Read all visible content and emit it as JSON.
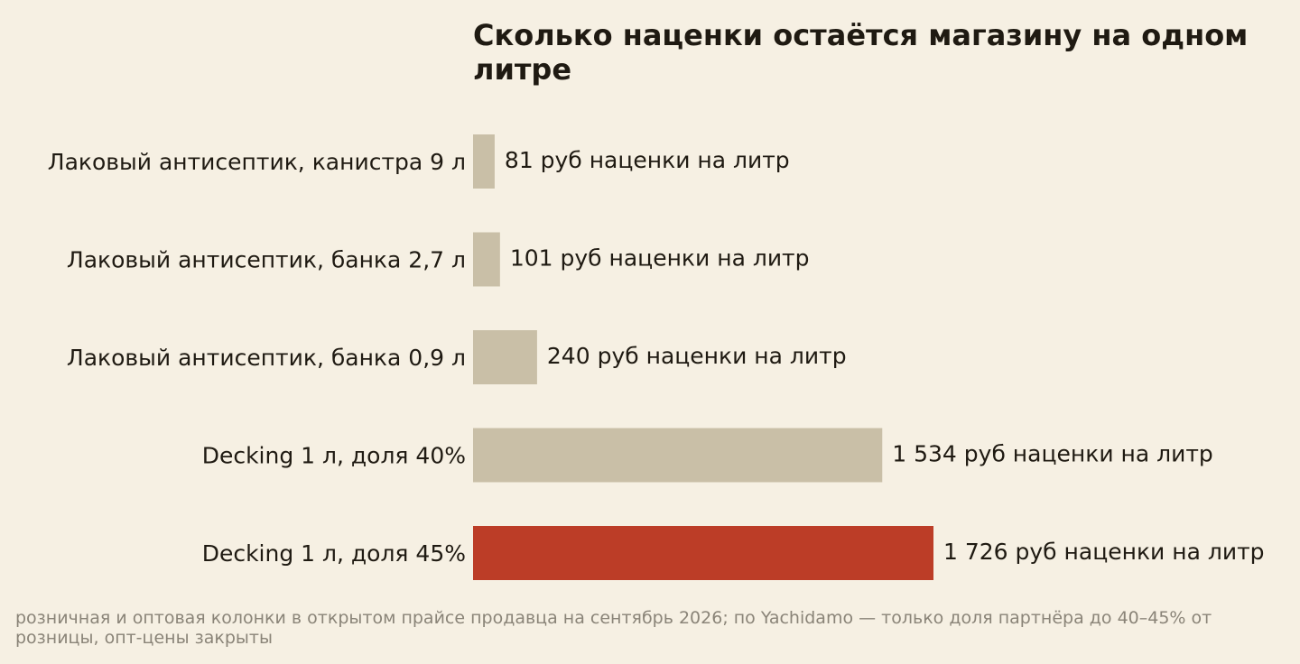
{
  "chart_data": {
    "type": "bar",
    "orientation": "horizontal",
    "title": "Сколько наценки остаётся магазину на одном литре",
    "categories": [
      "Лаковый антисептик, канистра 9 л",
      "Лаковый антисептик, банка 2,7 л",
      "Лаковый антисептик, банка 0,9 л",
      "Decking 1 л, доля 40%",
      "Decking 1 л, доля 45%"
    ],
    "values": [
      81,
      101,
      240,
      1534,
      1726
    ],
    "value_labels": [
      "81 руб наценки на литр",
      "101 руб наценки на литр",
      "240 руб наценки на литр",
      "1 534 руб наценки на литр",
      "1 726 руб наценки на литр"
    ],
    "highlight_index": 4,
    "xlim": [
      0,
      1726
    ],
    "grid": false,
    "legend": "none",
    "colors": {
      "bar": "#c9bfa7",
      "highlight": "#bc3d27",
      "background": "#f6f0e3",
      "text": "#1f1a12",
      "note": "#8a8478"
    },
    "note": "розничная и оптовая колонки в открытом прайсе продавца на сентябрь 2026; по Yachidamo — только доля партнёра до 40–45% от розницы, опт-цены закрыты"
  }
}
